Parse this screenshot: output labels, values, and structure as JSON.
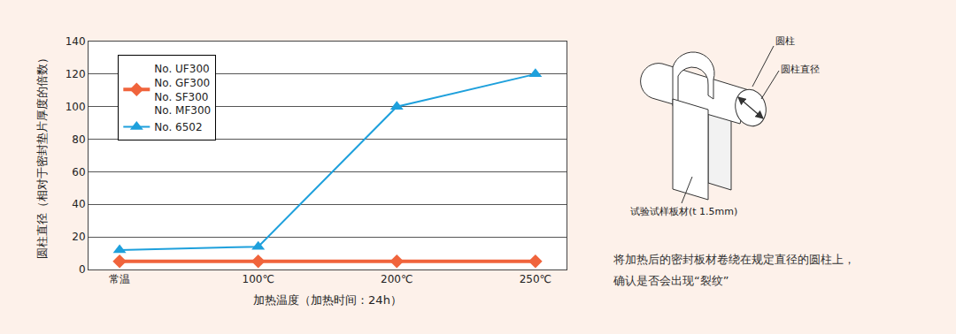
{
  "chart_data": {
    "type": "line",
    "x_label": "加热温度（加热时间：24h）",
    "y_label": "圆柱直径（相对于密封垫片厚度的倍数）",
    "categories": [
      "常温",
      "100℃",
      "200℃",
      "250℃"
    ],
    "series": [
      {
        "name": "No. UF300\nNo. GF300\nNo. SF300\nNo. MF300",
        "color": "#f0643c",
        "marker": "diamond",
        "line_style": "solid",
        "values": [
          5,
          5,
          5,
          5
        ]
      },
      {
        "name": "No. 6502",
        "color": "#1ea0dc",
        "marker": "triangle-up",
        "line_style": "solid",
        "values": [
          12,
          14,
          100,
          120
        ]
      }
    ],
    "ylim": [
      0,
      140
    ],
    "yticks": [
      0,
      20,
      40,
      60,
      80,
      100,
      120,
      140
    ],
    "grid": true,
    "legend": "upper left"
  },
  "diagram": {
    "labels": {
      "cylinder": "圆柱",
      "diameter": "圆柱直径",
      "specimen": "试验试样板材(t 1.5mm)"
    },
    "caption": [
      "将加热后的密封板材卷绕在规定直径的圆柱上，",
      "确认是否会出现“裂纹”"
    ]
  }
}
